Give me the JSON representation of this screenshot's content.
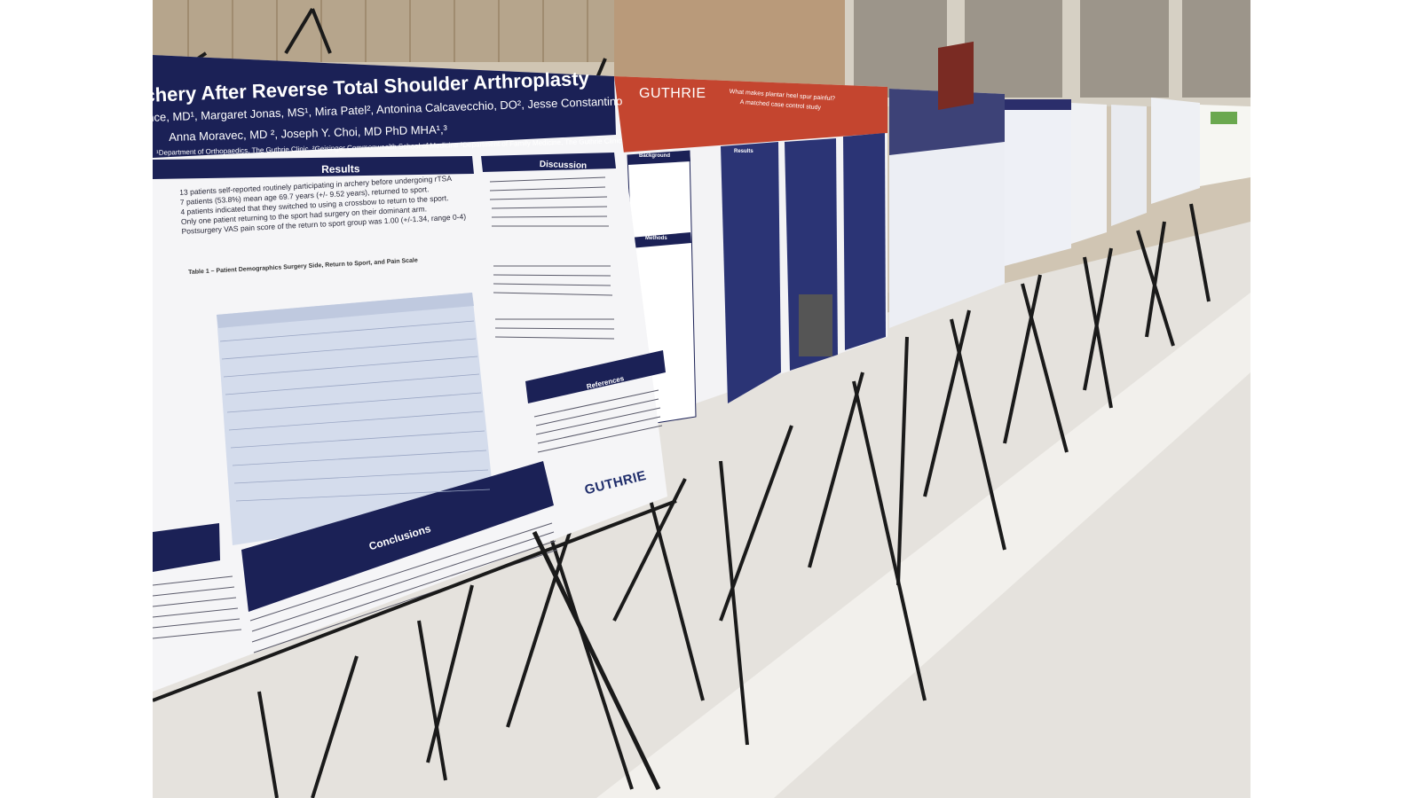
{
  "scene": {
    "description_tag": "poster-session-photo"
  },
  "poster_main": {
    "title": "chery After Reverse Total Shoulder Arthroplasty",
    "authors_line1": "nce, MD¹, Margaret Jonas, MS¹, Mira Patel², Antonina Calcavecchio, DO², Jesse Constantino",
    "authors_line2": "Anna Moravec, MD ², Joseph Y. Choi, MD PhD MHA¹,³",
    "affiliation": "¹Department of Orthopaedics, The Guthrie Clinic, ²Geisinger Commonwealth School of Medicine ³Department of Family Medicine, The Guthrie Clinic",
    "section_results": "Results",
    "section_discussion": "Discussion",
    "section_conclusions": "Conclusions",
    "section_references": "References",
    "results_line1": "13 patients self-reported routinely participating in archery before undergoing rTSA",
    "results_line2": "7 patients (53.8%) mean age 69.7 years (+/- 9.52 years), returned to sport.",
    "results_line3": "4 patients indicated that they switched to using a crossbow to return to the sport.",
    "results_line4": "Only one patient returning to the sport had surgery on their dominant arm.",
    "results_line5": "Postsurgery VAS pain score of the return to sport group was 1.00 (+/-1.34, range 0-4)",
    "table_caption": "Table 1 – Patient Demographics Surgery Side, Return to Sport, and Pain Scale",
    "logo": "GUTHRIE"
  },
  "poster_second": {
    "logo": "GUTHRIE",
    "title_line1": "What makes plantar heel spur painful?",
    "title_line2": "A matched case control study",
    "section_background": "Background",
    "section_methods": "Methods",
    "section_results": "Results"
  },
  "colors": {
    "navy": "#1b2156",
    "guthrie_red": "#c4452f",
    "poster_white": "#f4f4f6",
    "wall": "#c9bfae",
    "floor": "#e4e1dc"
  }
}
